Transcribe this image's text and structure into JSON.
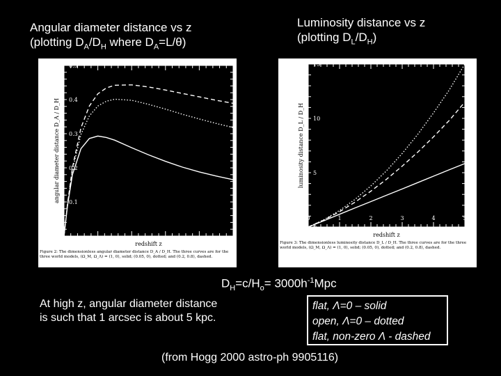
{
  "titles": {
    "left_line1": "Angular diameter distance vs z",
    "left_line2_pre": "(plotting D",
    "left_sub1": "A",
    "left_mid": "/D",
    "left_sub2": "H",
    "left_mid2": " where D",
    "left_sub3": "A",
    "left_post": "=L/θ)",
    "right_line1": "Luminosity distance vs z",
    "right_line2_pre": "(plotting D",
    "right_sub1": "L",
    "right_mid": "/D",
    "right_sub2": "H",
    "right_post": ")"
  },
  "dh": {
    "pre": "D",
    "sub1": "H",
    "mid": "=c/H",
    "sub2": "o",
    "mid2": "= 3000h",
    "sup": "-1",
    "post": "Mpc"
  },
  "note": "At high z, angular diameter distance is such that 1 arcsec is about 5 kpc.",
  "legend": {
    "solid": "flat, Λ=0 – solid",
    "dotted": "open, Λ=0 – dotted",
    "dashed": "flat, non-zero Λ - dashed"
  },
  "source": "(from Hogg 2000 astro-ph 9905116)",
  "chart_data": [
    {
      "type": "line",
      "xlabel": "redshift  z",
      "ylabel": "angular diameter distance  D_A / D_H",
      "xlim": [
        0,
        5
      ],
      "ylim": [
        0,
        0.5
      ],
      "yticks": [
        "0.1",
        "0.2",
        "0.3",
        "0.4",
        "0.5"
      ],
      "caption": "Figure 2:  The dimensionless angular diameter distance D_A / D_H.  The three curves are for the three world models, (Ω_M, Ω_Λ) = (1, 0), solid; (0.05, 0), dotted; and (0.2, 0.8), dashed.",
      "x": [
        0,
        0.1,
        0.25,
        0.5,
        0.75,
        1,
        1.25,
        1.5,
        2,
        2.5,
        3,
        3.5,
        4,
        4.5,
        5
      ],
      "series": [
        {
          "style": "solid",
          "values": [
            0,
            0.087,
            0.18,
            0.256,
            0.286,
            0.293,
            0.289,
            0.281,
            0.259,
            0.238,
            0.219,
            0.202,
            0.188,
            0.176,
            0.165
          ]
        },
        {
          "style": "dotted",
          "values": [
            0,
            0.09,
            0.194,
            0.298,
            0.352,
            0.381,
            0.395,
            0.401,
            0.398,
            0.386,
            0.372,
            0.357,
            0.343,
            0.33,
            0.318
          ]
        },
        {
          "style": "dashed",
          "values": [
            0,
            0.092,
            0.2,
            0.317,
            0.381,
            0.417,
            0.434,
            0.442,
            0.443,
            0.437,
            0.428,
            0.418,
            0.408,
            0.398,
            0.389
          ]
        }
      ]
    },
    {
      "type": "line",
      "xlabel": "redshift  z",
      "ylabel": "luminosity distance  D_L / D_H",
      "xlim": [
        0,
        5
      ],
      "ylim": [
        0,
        15
      ],
      "xticks": [
        "0",
        "1",
        "2",
        "3",
        "4",
        "5"
      ],
      "yticks": [
        "0",
        "5",
        "10",
        "15"
      ],
      "caption": "Figure 3:  The dimensionless luminosity distance D_L / D_H.  The three curves are for the three world models, (Ω_M, Ω_Λ) = (1, 0), solid; (0.05, 0), dotted; and (0.2, 0.8), dashed.",
      "x": [
        0,
        0.5,
        1,
        1.5,
        2,
        2.5,
        3,
        3.5,
        4,
        4.5,
        5
      ],
      "series": [
        {
          "style": "solid",
          "values": [
            0,
            0.58,
            1.17,
            1.76,
            2.34,
            2.92,
            3.5,
            4.09,
            4.68,
            5.26,
            5.84
          ]
        },
        {
          "style": "dotted",
          "values": [
            0,
            0.67,
            1.52,
            2.56,
            3.78,
            5.18,
            6.77,
            8.54,
            10.5,
            12.6,
            15.0
          ]
        },
        {
          "style": "dashed",
          "values": [
            0,
            0.64,
            1.41,
            2.3,
            3.3,
            4.4,
            5.6,
            6.9,
            8.3,
            9.8,
            11.5
          ]
        }
      ]
    }
  ]
}
